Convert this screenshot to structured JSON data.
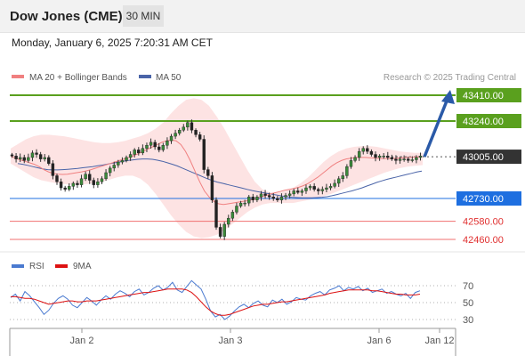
{
  "header": {
    "title": "Dow Jones (CME)",
    "timeframe": "30 MIN",
    "datetime": "Monday, January 6, 2025 7:20:31 AM CET"
  },
  "legend": {
    "ma20": "MA 20 + Bollinger Bands",
    "ma50": "MA 50",
    "credit": "Research © 2025 Trading Central",
    "rsi": "RSI",
    "rsi_ma": "9MA"
  },
  "colors": {
    "price_up": "#333333",
    "ma20": "#f08080",
    "ma50": "#4a64a8",
    "bollinger_fill": "#fde3e3",
    "resistance": "#5aa01e",
    "pivot": "#1e6fe0",
    "support": "#f07070",
    "last_price": "#333333",
    "rsi": "#4a7ad0",
    "rsi_ma": "#dd1111",
    "forecast_arrow": "#2a5aa8"
  },
  "chart_data": [
    {
      "type": "candlestick",
      "x_ticks": [
        "Jan 2",
        "Jan 3",
        "Jan 6",
        "Jan 12"
      ],
      "ylim": [
        42400,
        43450
      ],
      "levels": [
        {
          "label": "43410.00",
          "value": 43410,
          "kind": "resistance"
        },
        {
          "label": "43240.00",
          "value": 43240,
          "kind": "resistance"
        },
        {
          "label": "43005.00",
          "value": 43005,
          "kind": "last"
        },
        {
          "label": "42730.00",
          "value": 42730,
          "kind": "pivot"
        },
        {
          "label": "42580.00",
          "value": 42580,
          "kind": "support"
        },
        {
          "label": "42460.00",
          "value": 42460,
          "kind": "support"
        }
      ],
      "close": [
        43010,
        42990,
        43000,
        42980,
        43000,
        43030,
        43020,
        42990,
        43000,
        42960,
        42880,
        42840,
        42800,
        42790,
        42810,
        42830,
        42820,
        42860,
        42890,
        42850,
        42820,
        42840,
        42860,
        42900,
        42930,
        42950,
        42970,
        42980,
        43000,
        43020,
        43050,
        43030,
        43060,
        43080,
        43100,
        43070,
        43050,
        43080,
        43110,
        43140,
        43160,
        43180,
        43200,
        43230,
        43180,
        43150,
        43120,
        42920,
        42880,
        42720,
        42540,
        42480,
        42560,
        42600,
        42640,
        42680,
        42700,
        42700,
        42740,
        42720,
        42740,
        42760,
        42750,
        42740,
        42730,
        42720,
        42740,
        42750,
        42760,
        42780,
        42770,
        42780,
        42800,
        42810,
        42790,
        42780,
        42790,
        42800,
        42810,
        42830,
        42860,
        42880,
        42940,
        42980,
        43000,
        43040,
        43060,
        43040,
        43020,
        43000,
        43010,
        43010,
        43000,
        42990,
        42980,
        42990,
        42990,
        42980,
        42985,
        43000,
        43010
      ],
      "ma20": [
        43010,
        42995,
        42985,
        42975,
        42965,
        42955,
        42940,
        42920,
        42905,
        42895,
        42890,
        42888,
        42890,
        42895,
        42900,
        42905,
        42912,
        42920,
        42930,
        42940,
        42950,
        42960,
        42970,
        42980,
        42990,
        43000,
        43012,
        43025,
        43040,
        43055,
        43070,
        43085,
        43100,
        43110,
        43115,
        43110,
        43085,
        43040,
        42980,
        42910,
        42840,
        42780,
        42740,
        42710,
        42695,
        42690,
        42695,
        42700,
        42705,
        42710,
        42715,
        42722,
        42730,
        42740,
        42750,
        42760,
        42768,
        42776,
        42784,
        42790,
        42796,
        42804,
        42815,
        42830,
        42850,
        42870,
        42895,
        42920,
        42945,
        42965,
        42980,
        42990,
        42995,
        43000,
        43000,
        43000,
        42998,
        42996,
        42994,
        42993,
        42993,
        42994,
        42996,
        42998,
        43000,
        43002,
        43004,
        43005
      ],
      "ma50": [
        42960,
        42955,
        42948,
        42940,
        42932,
        42925,
        42920,
        42918,
        42918,
        42920,
        42922,
        42925,
        42928,
        42932,
        42936,
        42940,
        42945,
        42950,
        42956,
        42962,
        42968,
        42974,
        42980,
        42984,
        42988,
        42990,
        42990,
        42988,
        42982,
        42975,
        42965,
        42955,
        42944,
        42930,
        42916,
        42902,
        42888,
        42874,
        42860,
        42848,
        42838,
        42830,
        42822,
        42814,
        42806,
        42798,
        42790,
        42782,
        42776,
        42770,
        42764,
        42758,
        42752,
        42746,
        42742,
        42738,
        42736,
        42734,
        42734,
        42734,
        42736,
        42738,
        42742,
        42748,
        42756,
        42764,
        42772,
        42780,
        42790,
        42800,
        42812,
        42824,
        42836,
        42846,
        42856,
        42864,
        42872,
        42880,
        42888,
        42896,
        42904,
        42910
      ],
      "bb_upper": [
        43060,
        43090,
        43120,
        43140,
        43150,
        43150,
        43145,
        43140,
        43130,
        43120,
        43110,
        43100,
        43095,
        43095,
        43100,
        43110,
        43125,
        43140,
        43160,
        43190,
        43230,
        43290,
        43340,
        43380,
        43390,
        43380,
        43340,
        43270,
        43190,
        43100,
        43010,
        42920,
        42840,
        42790,
        42770,
        42770,
        42780,
        42800,
        42830,
        42870,
        42920,
        42970,
        43010,
        43040,
        43060,
        43070,
        43075,
        43075,
        43070,
        43060,
        43050,
        43040,
        43035,
        43030,
        43030
      ],
      "bb_lower": [
        42960,
        42930,
        42900,
        42870,
        42850,
        42840,
        42830,
        42825,
        42820,
        42820,
        42825,
        42830,
        42840,
        42855,
        42870,
        42880,
        42880,
        42860,
        42820,
        42760,
        42690,
        42620,
        42560,
        42510,
        42480,
        42470,
        42475,
        42490,
        42520,
        42560,
        42600,
        42640,
        42670,
        42690,
        42700,
        42700,
        42700,
        42700,
        42710,
        42720,
        42730,
        42745,
        42760,
        42780,
        42800,
        42820,
        42840,
        42860,
        42880,
        42900,
        42915,
        42930,
        42940,
        42945,
        42950
      ],
      "forecast": {
        "from": 43005,
        "to": 43410
      }
    },
    {
      "type": "line",
      "name": "RSI",
      "ylim": [
        20,
        80
      ],
      "yticks": [
        70,
        50,
        30
      ],
      "rsi": [
        56,
        60,
        52,
        63,
        58,
        51,
        44,
        36,
        41,
        49,
        55,
        58,
        54,
        47,
        44,
        50,
        56,
        52,
        47,
        53,
        58,
        54,
        60,
        64,
        61,
        57,
        63,
        66,
        59,
        62,
        67,
        70,
        65,
        68,
        74,
        65,
        62,
        69,
        76,
        71,
        66,
        54,
        40,
        33,
        36,
        30,
        34,
        40,
        45,
        48,
        44,
        49,
        52,
        47,
        45,
        53,
        50,
        54,
        48,
        51,
        56,
        54,
        53,
        58,
        61,
        63,
        59,
        65,
        67,
        70,
        64,
        68,
        66,
        69,
        64,
        67,
        62,
        64,
        66,
        61,
        63,
        60,
        58,
        61,
        55,
        62,
        64
      ],
      "rsi_ma": [
        57,
        57,
        56,
        55,
        55,
        54,
        52,
        50,
        48,
        49,
        50,
        51,
        52,
        52,
        51,
        51,
        52,
        52,
        52,
        53,
        54,
        55,
        56,
        57,
        58,
        59,
        60,
        61,
        62,
        62,
        63,
        64,
        65,
        66,
        66,
        66,
        66,
        65,
        62,
        57,
        51,
        45,
        40,
        37,
        35,
        35,
        36,
        38,
        40,
        42,
        44,
        46,
        47,
        48,
        48,
        49,
        50,
        51,
        51,
        52,
        53,
        54,
        55,
        56,
        57,
        58,
        59,
        61,
        62,
        63,
        64,
        65,
        65,
        65,
        65,
        65,
        64,
        64,
        63,
        62,
        61,
        60,
        60,
        59,
        59,
        59,
        60
      ]
    }
  ]
}
